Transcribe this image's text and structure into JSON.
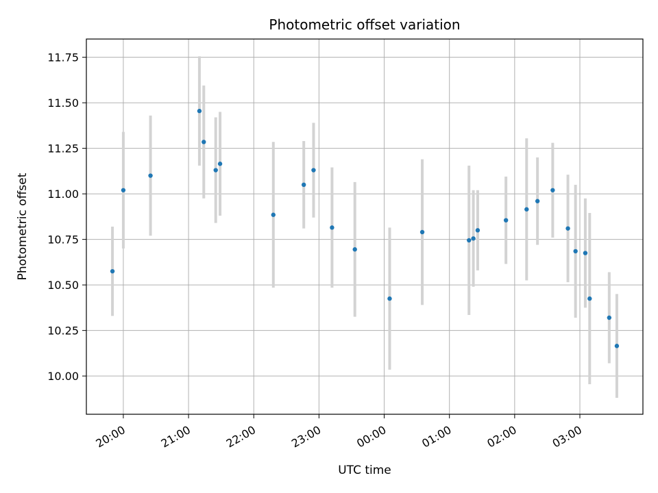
{
  "chart_data": {
    "type": "scatter",
    "title": "Photometric offset variation",
    "xlabel": "UTC time",
    "ylabel": "Photometric offset",
    "x_unit": "UTC time of day (crosses midnight)",
    "xlim": [
      "19:26",
      "03:58 (+1 day)"
    ],
    "ylim": [
      9.79,
      11.85
    ],
    "grid": true,
    "xticks": [
      "20:00",
      "21:00",
      "22:00",
      "23:00",
      "00:00",
      "01:00",
      "02:00",
      "03:00"
    ],
    "yticks": [
      "10.00",
      "10.25",
      "10.50",
      "10.75",
      "11.00",
      "11.25",
      "11.50",
      "11.75"
    ],
    "marker_color": "#1f77b4",
    "errorbar_color": "#d3d3d3",
    "series": [
      {
        "points": [
          {
            "x": "19:50",
            "y": 10.575,
            "err": 0.245
          },
          {
            "x": "20:00",
            "y": 11.02,
            "err": 0.32
          },
          {
            "x": "20:25",
            "y": 11.1,
            "err": 0.33
          },
          {
            "x": "21:10",
            "y": 11.455,
            "err": 0.3
          },
          {
            "x": "21:14",
            "y": 11.285,
            "err": 0.31
          },
          {
            "x": "21:25",
            "y": 11.13,
            "err": 0.29
          },
          {
            "x": "21:29",
            "y": 11.165,
            "err": 0.285
          },
          {
            "x": "22:18",
            "y": 10.885,
            "err": 0.4
          },
          {
            "x": "22:46",
            "y": 11.05,
            "err": 0.24
          },
          {
            "x": "22:55",
            "y": 11.13,
            "err": 0.26
          },
          {
            "x": "23:12",
            "y": 10.815,
            "err": 0.33
          },
          {
            "x": "23:33",
            "y": 10.695,
            "err": 0.37
          },
          {
            "x": "00:05",
            "y": 10.425,
            "err": 0.39
          },
          {
            "x": "00:35",
            "y": 10.79,
            "err": 0.4
          },
          {
            "x": "01:18",
            "y": 10.745,
            "err": 0.41
          },
          {
            "x": "01:22",
            "y": 10.755,
            "err": 0.265
          },
          {
            "x": "01:26",
            "y": 10.8,
            "err": 0.22
          },
          {
            "x": "01:52",
            "y": 10.855,
            "err": 0.24
          },
          {
            "x": "02:11",
            "y": 10.915,
            "err": 0.39
          },
          {
            "x": "02:21",
            "y": 10.96,
            "err": 0.24
          },
          {
            "x": "02:35",
            "y": 11.02,
            "err": 0.26
          },
          {
            "x": "02:49",
            "y": 10.81,
            "err": 0.295
          },
          {
            "x": "02:56",
            "y": 10.685,
            "err": 0.365
          },
          {
            "x": "03:05",
            "y": 10.675,
            "err": 0.3
          },
          {
            "x": "03:09",
            "y": 10.425,
            "err": 0.47
          },
          {
            "x": "03:27",
            "y": 10.32,
            "err": 0.25
          },
          {
            "x": "03:34",
            "y": 10.165,
            "err": 0.285
          }
        ]
      }
    ]
  }
}
